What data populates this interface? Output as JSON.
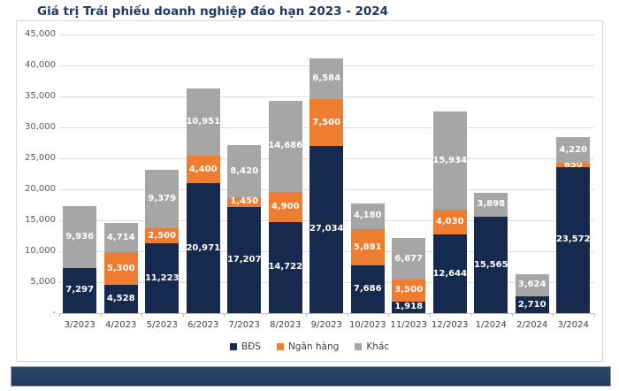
{
  "title": "Giá trị Trái phiếu doanh nghiệp đáo hạn 2023 - 2024",
  "colors": {
    "title": "#1F3864",
    "bds": "#16294E",
    "ngan_hang": "#ED7D31",
    "khac": "#A6A6A6",
    "footer_bar": "#24395E",
    "gridline": "#DCDCDC",
    "axis_text": "#595959"
  },
  "chart_data": {
    "type": "bar",
    "stacked": true,
    "title": "Giá trị Trái phiếu doanh nghiệp đáo hạn 2023 - 2024",
    "categories": [
      "3/2023",
      "4/2023",
      "5/2023",
      "6/2023",
      "7/2023",
      "8/2023",
      "9/2023",
      "10/2023",
      "11/2023",
      "12/2023",
      "1/2024",
      "2/2024",
      "3/2024"
    ],
    "series": [
      {
        "name": "BĐS",
        "color": "#16294E",
        "values": [
          7297,
          4528,
          11223,
          20971,
          17207,
          14722,
          27034,
          7686,
          1918,
          12644,
          15565,
          2710,
          23572
        ]
      },
      {
        "name": "Ngân hàng",
        "color": "#ED7D31",
        "values": [
          0,
          5300,
          2500,
          4400,
          1450,
          4900,
          7500,
          5881,
          3500,
          4030,
          0,
          0,
          650
        ]
      },
      {
        "name": "Khác",
        "color": "#A6A6A6",
        "values": [
          9936,
          4714,
          9379,
          10951,
          8420,
          14686,
          6584,
          4180,
          6677,
          15934,
          3898,
          3624,
          4220
        ]
      }
    ],
    "xlabel": "",
    "ylabel": "",
    "ylim": [
      0,
      45000
    ],
    "ytick_step": 5000,
    "ytick_labels": [
      "-",
      "5,000",
      "10,000",
      "15,000",
      "20,000",
      "25,000",
      "30,000",
      "35,000",
      "40,000",
      "45,000"
    ],
    "grid": true,
    "legend_position": "bottom",
    "data_labels": true
  }
}
